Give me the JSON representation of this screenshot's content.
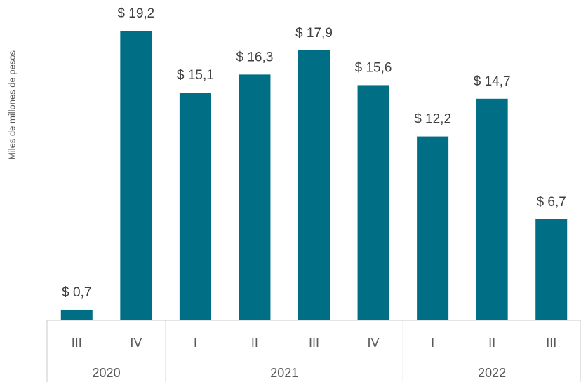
{
  "chart_data": {
    "type": "bar",
    "y_axis_label": "Miles de millones de pesos",
    "categories": [
      "III",
      "IV",
      "I",
      "II",
      "III",
      "IV",
      "I",
      "II",
      "III"
    ],
    "groups": [
      {
        "label": "2020",
        "count": 2
      },
      {
        "label": "2021",
        "count": 4
      },
      {
        "label": "2022",
        "count": 3
      }
    ],
    "values": [
      0.7,
      19.2,
      15.1,
      16.3,
      17.9,
      15.6,
      12.2,
      14.7,
      6.7
    ],
    "value_labels": [
      "$ 0,7",
      "$ 19,2",
      "$ 15,1",
      "$ 16,3",
      "$ 17,9",
      "$ 15,6",
      "$ 12,2",
      "$ 14,7",
      "$ 6,7"
    ],
    "color": "#006f86"
  }
}
